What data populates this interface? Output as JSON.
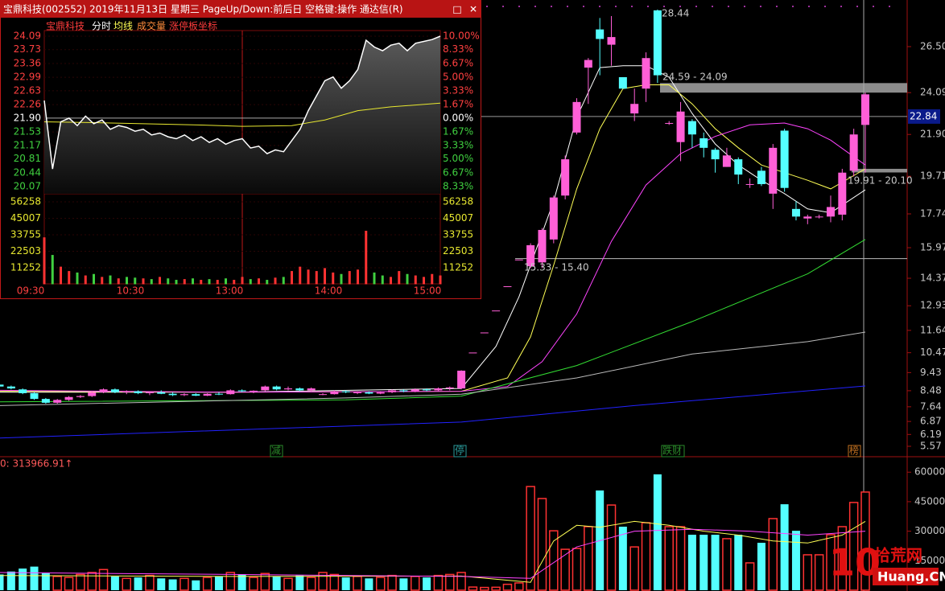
{
  "window": {
    "title": "宝鼎科技(002552) 2019年11月13日 星期三 PageUp/Down:前后日 空格键:操作 通达信(R)",
    "buttons": [
      "□",
      "✕"
    ]
  },
  "intraday": {
    "tabs": [
      "宝鼎科技",
      "分时",
      "均线",
      "成交量",
      "涨停板坐标"
    ],
    "price_ticks": [
      24.09,
      23.73,
      23.36,
      22.99,
      22.63,
      22.26,
      {
        "value": 21.9,
        "label": "21.90"
      },
      21.53,
      21.17,
      20.81,
      20.44,
      20.07
    ],
    "pct_labels": [
      "10.00%",
      "8.33%",
      "6.67%",
      "5.00%",
      "3.33%",
      "1.67%",
      "0.00%",
      "1.67%",
      "3.33%",
      "5.00%",
      "6.67%",
      "8.33%"
    ],
    "ylim": [
      20.07,
      24.09
    ],
    "volume_ticks": [
      56258,
      45007,
      33755,
      22503,
      11252
    ],
    "volume_ylim": [
      0,
      56258
    ],
    "times": [
      "09:30",
      "10:30",
      "13:00",
      "14:00",
      "15:00"
    ],
    "price": [
      22.37,
      20.54,
      21.8,
      21.9,
      21.7,
      21.95,
      21.75,
      21.85,
      21.6,
      21.7,
      21.65,
      21.55,
      21.6,
      21.45,
      21.5,
      21.4,
      21.35,
      21.45,
      21.3,
      21.4,
      21.25,
      21.35,
      21.2,
      21.3,
      21.35,
      21.1,
      21.15,
      20.95,
      21.05,
      21.0,
      21.3,
      21.6,
      22.1,
      22.5,
      22.9,
      23.0,
      22.7,
      22.9,
      23.2,
      23.98,
      23.8,
      23.7,
      23.85,
      23.9,
      23.7,
      23.9,
      23.95,
      24.0,
      24.09
    ],
    "avg_x": [
      0,
      6,
      12,
      18,
      24,
      30,
      34,
      38,
      42,
      48
    ],
    "avg": [
      21.8,
      21.78,
      21.75,
      21.72,
      21.68,
      21.7,
      21.85,
      22.1,
      22.2,
      22.3
    ],
    "volume": [
      32000,
      20000,
      12000,
      9000,
      8000,
      6000,
      7000,
      5000,
      6000,
      4000,
      5000,
      4500,
      4000,
      3500,
      5000,
      4000,
      3000,
      3500,
      4000,
      3000,
      3500,
      3000,
      4000,
      3000,
      5000,
      3500,
      4000,
      3000,
      4500,
      5000,
      9000,
      12000,
      10000,
      9000,
      11000,
      8000,
      7000,
      9000,
      10000,
      36500,
      8000,
      6000,
      5000,
      9000,
      7000,
      6000,
      5000,
      7000,
      6000
    ]
  },
  "kline": {
    "ylim": [
      5.15,
      28.52
    ],
    "yticks": [
      {
        "value": 26.5,
        "label": "26.50"
      },
      24.09,
      {
        "value": 21.9,
        "label": "21.90"
      },
      19.71,
      17.74,
      15.97,
      14.37,
      12.93,
      11.64,
      10.47,
      9.43,
      8.48,
      7.64,
      6.87,
      6.19,
      5.57
    ],
    "current_price": 22.84,
    "up_color": "#ff5fd7",
    "down_color": "#54ffff",
    "candles": [
      [
        8.8,
        8.85,
        8.65,
        8.7
      ],
      [
        8.7,
        8.75,
        8.55,
        8.6
      ],
      [
        8.55,
        8.6,
        8.3,
        8.35
      ],
      [
        8.35,
        8.4,
        8.0,
        8.05
      ],
      [
        8.05,
        8.1,
        7.8,
        7.85
      ],
      [
        7.85,
        8.05,
        7.8,
        8.0
      ],
      [
        8.0,
        8.2,
        7.95,
        8.15
      ],
      [
        8.15,
        8.25,
        8.1,
        8.2
      ],
      [
        8.2,
        8.45,
        8.15,
        8.4
      ],
      [
        8.4,
        8.6,
        8.35,
        8.55
      ],
      [
        8.55,
        8.6,
        8.35,
        8.4
      ],
      [
        8.4,
        8.5,
        8.3,
        8.45
      ],
      [
        8.45,
        8.5,
        8.3,
        8.35
      ],
      [
        8.35,
        8.45,
        8.25,
        8.4
      ],
      [
        8.4,
        8.5,
        8.3,
        8.32
      ],
      [
        8.32,
        8.4,
        8.2,
        8.25
      ],
      [
        8.25,
        8.35,
        8.2,
        8.3
      ],
      [
        8.3,
        8.35,
        8.2,
        8.22
      ],
      [
        8.22,
        8.35,
        8.2,
        8.32
      ],
      [
        8.32,
        8.4,
        8.25,
        8.28
      ],
      [
        8.3,
        8.55,
        8.28,
        8.5
      ],
      [
        8.5,
        8.55,
        8.4,
        8.45
      ],
      [
        8.45,
        8.5,
        8.35,
        8.48
      ],
      [
        8.5,
        8.75,
        8.45,
        8.7
      ],
      [
        8.7,
        8.75,
        8.5,
        8.55
      ],
      [
        8.55,
        8.7,
        8.5,
        8.6
      ],
      [
        8.6,
        8.65,
        8.45,
        8.5
      ],
      [
        8.5,
        8.65,
        8.45,
        8.6
      ],
      [
        8.3,
        8.35,
        8.25,
        8.3
      ],
      [
        8.3,
        8.5,
        8.28,
        8.45
      ],
      [
        8.45,
        8.5,
        8.35,
        8.4
      ],
      [
        8.35,
        8.45,
        8.3,
        8.4
      ],
      [
        8.4,
        8.45,
        8.3,
        8.33
      ],
      [
        8.33,
        8.45,
        8.3,
        8.4
      ],
      [
        8.4,
        8.55,
        8.35,
        8.5
      ],
      [
        8.5,
        8.55,
        8.4,
        8.45
      ],
      [
        8.45,
        8.6,
        8.4,
        8.55
      ],
      [
        8.55,
        8.6,
        8.45,
        8.5
      ],
      [
        8.5,
        8.65,
        8.45,
        8.6
      ],
      [
        8.6,
        8.7,
        8.5,
        8.65
      ],
      [
        8.6,
        9.55,
        8.55,
        9.53
      ],
      [
        10.48,
        10.48,
        10.48,
        10.48
      ],
      [
        11.53,
        11.53,
        11.53,
        11.53
      ],
      [
        12.68,
        12.68,
        12.68,
        12.68
      ],
      [
        13.95,
        13.95,
        13.95,
        13.95
      ],
      [
        15.35,
        15.35,
        15.35,
        15.35
      ],
      [
        15.0,
        16.2,
        14.9,
        16.1
      ],
      [
        15.2,
        17.0,
        14.9,
        16.9
      ],
      [
        16.4,
        18.7,
        16.2,
        18.6
      ],
      [
        18.7,
        20.8,
        18.5,
        20.6
      ],
      [
        22.0,
        23.8,
        21.9,
        23.6
      ],
      [
        25.4,
        25.9,
        23.5,
        25.8
      ],
      [
        27.4,
        28.0,
        25.0,
        26.9
      ],
      [
        26.6,
        28.1,
        25.5,
        27.0
      ],
      [
        24.9,
        24.9,
        24.3,
        24.3
      ],
      [
        23.0,
        24.3,
        22.6,
        23.5
      ],
      [
        24.3,
        26.2,
        23.6,
        25.9
      ],
      [
        28.4,
        28.44,
        24.6,
        25.0
      ],
      [
        22.5,
        22.6,
        22.4,
        22.5
      ],
      [
        21.5,
        23.6,
        20.5,
        23.1
      ],
      [
        22.6,
        22.7,
        21.2,
        21.9
      ],
      [
        21.7,
        22.0,
        20.7,
        21.2
      ],
      [
        21.1,
        21.2,
        19.9,
        20.6
      ],
      [
        20.2,
        21.2,
        20.2,
        20.8
      ],
      [
        20.6,
        20.7,
        19.3,
        19.8
      ],
      [
        19.3,
        19.6,
        19.1,
        19.3
      ],
      [
        20.0,
        20.2,
        19.2,
        19.3
      ],
      [
        18.8,
        21.4,
        18.0,
        21.2
      ],
      [
        22.1,
        22.2,
        18.9,
        19.1
      ],
      [
        18.0,
        18.4,
        17.4,
        17.6
      ],
      [
        17.5,
        17.7,
        17.2,
        17.6
      ],
      [
        17.6,
        17.7,
        17.5,
        17.6
      ],
      [
        17.6,
        18.7,
        17.3,
        18.1
      ],
      [
        17.7,
        20.1,
        17.4,
        19.9
      ],
      [
        20.0,
        22.2,
        19.7,
        21.9
      ],
      [
        22.4,
        24.1,
        19.9,
        24.0
      ]
    ],
    "volume": [
      8000,
      9500,
      11000,
      12000,
      9000,
      7000,
      6500,
      8000,
      9000,
      10500,
      7000,
      6000,
      6500,
      7500,
      6000,
      5500,
      6000,
      5000,
      6500,
      7000,
      9000,
      8000,
      6500,
      8500,
      7000,
      6000,
      7500,
      6500,
      9000,
      8000,
      6500,
      7000,
      6000,
      6500,
      7500,
      6000,
      7000,
      6500,
      7500,
      8000,
      9000,
      1600,
      1400,
      1500,
      3000,
      3700,
      52700,
      46600,
      30200,
      20800,
      21200,
      32300,
      50700,
      43300,
      32300,
      22000,
      34300,
      58900,
      32300,
      32300,
      28200,
      28200,
      28200,
      26200,
      28200,
      13900,
      24100,
      36400,
      43700,
      30200,
      18000,
      18000,
      28200,
      32300,
      44600,
      49900
    ],
    "volume_ylim": [
      0,
      65000
    ],
    "volume_ticks": [
      60000,
      45000,
      30000,
      15000
    ],
    "volume_label": "0: 313966.91↑",
    "ma": [
      {
        "color": "#ffffff",
        "x": [
          0,
          20,
          40,
          43,
          45,
          48,
          50,
          52,
          54,
          56,
          58,
          60,
          62,
          64,
          66,
          68,
          70,
          72,
          75
        ],
        "values": [
          8.4,
          8.4,
          8.6,
          10.8,
          13.4,
          18.4,
          22.8,
          25.4,
          25.5,
          25.5,
          24.9,
          23.0,
          21.4,
          20.3,
          19.5,
          18.8,
          18.0,
          17.8,
          19.0
        ]
      },
      {
        "color": "#ffff55",
        "x": [
          0,
          20,
          40,
          44,
          46,
          48,
          50,
          52,
          54,
          56,
          58,
          60,
          62,
          64,
          66,
          68,
          70,
          72,
          75
        ],
        "values": [
          8.45,
          8.4,
          8.45,
          9.15,
          11.3,
          15.05,
          19.05,
          22.2,
          24.3,
          24.5,
          24.5,
          23.5,
          22.2,
          21.2,
          20.3,
          19.9,
          19.5,
          19.05,
          20.1
        ]
      },
      {
        "color": "#ff44ff",
        "x": [
          0,
          20,
          40,
          44,
          47,
          50,
          53,
          56,
          59,
          62,
          65,
          68,
          70,
          72,
          75
        ],
        "values": [
          8.5,
          8.4,
          8.45,
          8.7,
          10.0,
          12.5,
          16.3,
          19.25,
          20.9,
          21.8,
          22.4,
          22.5,
          22.2,
          21.6,
          20.3
        ]
      },
      {
        "color": "#33dd33",
        "x": [
          0,
          30,
          40,
          50,
          60,
          70,
          75
        ],
        "values": [
          7.9,
          8.0,
          8.2,
          9.8,
          12.1,
          14.6,
          16.4
        ]
      },
      {
        "color": "#bbbbbb",
        "x": [
          0,
          30,
          40,
          50,
          60,
          70,
          75
        ],
        "values": [
          7.7,
          8.1,
          8.3,
          9.15,
          10.4,
          11.05,
          11.55
        ]
      },
      {
        "color": "#2222ff",
        "x": [
          0,
          40,
          55,
          75
        ],
        "values": [
          6.0,
          6.84,
          7.7,
          8.73
        ]
      }
    ],
    "volume_ma": [
      {
        "color": "#ffff55",
        "x": [
          0,
          20,
          40,
          46,
          48,
          50,
          52,
          55,
          58,
          61,
          64,
          67,
          70,
          73,
          75
        ],
        "values": [
          7500,
          7000,
          7200,
          4000,
          25000,
          33000,
          32000,
          35000,
          33000,
          30000,
          28000,
          25000,
          24000,
          28000,
          35000
        ]
      },
      {
        "color": "#ff44ff",
        "x": [
          0,
          20,
          40,
          46,
          50,
          55,
          60,
          65,
          70,
          75
        ],
        "values": [
          9000,
          8000,
          7000,
          6000,
          22000,
          30000,
          31000,
          30000,
          28000,
          30000
        ]
      }
    ],
    "annotations": [
      "28.44",
      "24.59 - 24.09",
      "15.33 - 15.40",
      "19.91 - 20.10"
    ],
    "bands": [
      [
        24.09,
        24.59
      ],
      [
        19.91,
        20.1
      ]
    ],
    "level_line": 15.4,
    "events": [
      "减",
      "停",
      "跌财",
      "榜"
    ]
  },
  "watermark": {
    "number": "10",
    "site": "拾荒网",
    "domain": "Huang.CN"
  }
}
